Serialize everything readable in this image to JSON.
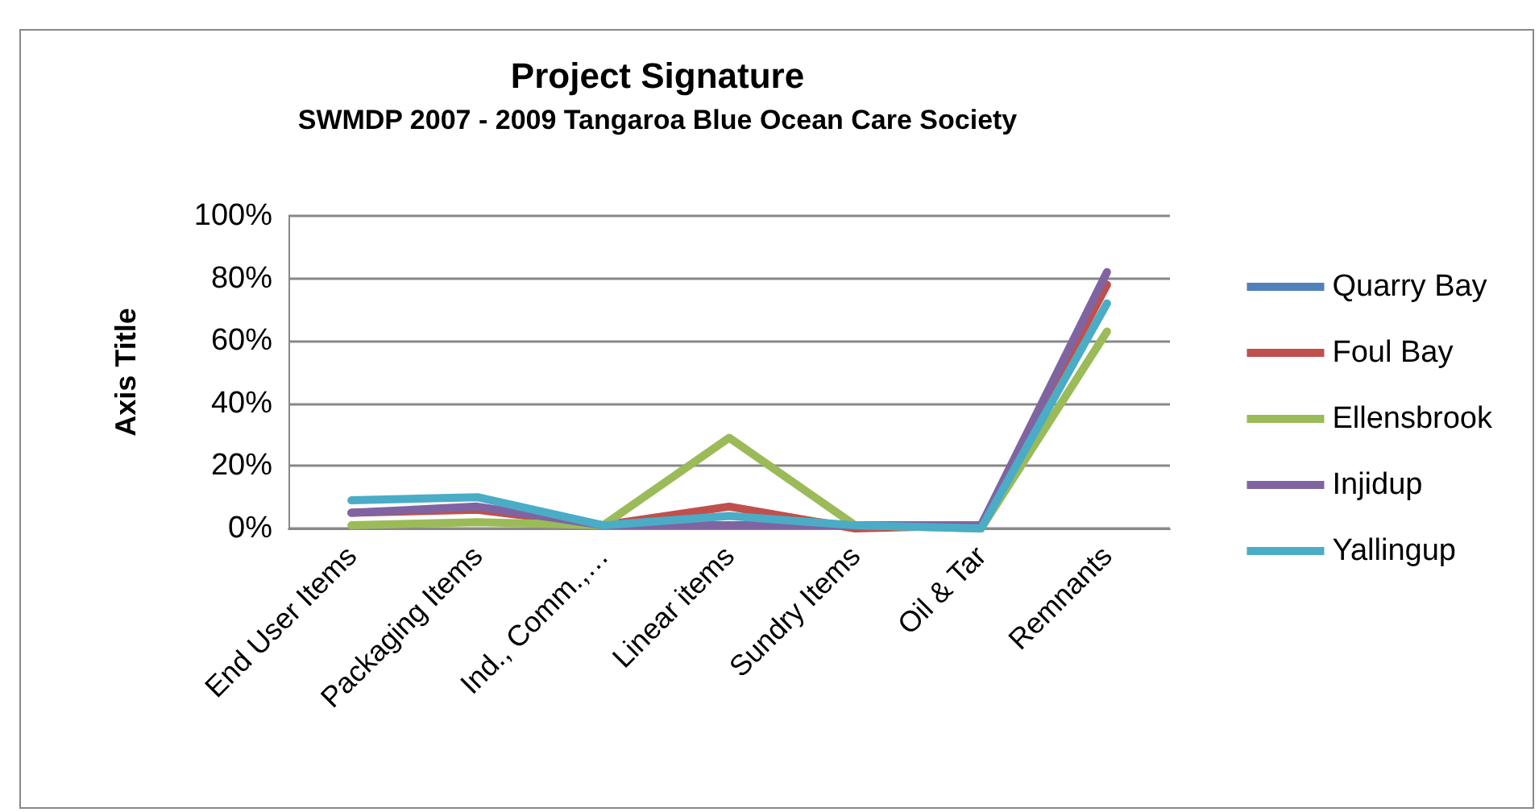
{
  "chart_data": {
    "type": "line",
    "title": "Project Signature",
    "subtitle": "SWMDP 2007 - 2009 Tangaroa Blue Ocean Care Society",
    "ylabel": "Axis Title",
    "categories": [
      "End User Items",
      "Packaging Items",
      "Ind., Comm.,…",
      "Linear items",
      "Sundry Items",
      "Oil & Tar",
      "Remnants"
    ],
    "series": [
      {
        "name": "Quarry Bay",
        "color": "#4f81bd",
        "values": [
          null,
          null,
          null,
          null,
          null,
          null,
          null
        ]
      },
      {
        "name": "Foul Bay",
        "color": "#c0504d",
        "values": [
          5,
          6,
          1,
          7,
          0,
          1,
          78
        ]
      },
      {
        "name": "Ellensbrook",
        "color": "#9bbb59",
        "values": [
          1,
          2,
          1,
          29,
          1,
          0,
          63
        ]
      },
      {
        "name": "Injidup",
        "color": "#8064a2",
        "values": [
          5,
          7,
          1,
          1,
          1,
          1,
          82
        ]
      },
      {
        "name": "Yallingup",
        "color": "#4bacc6",
        "values": [
          9,
          10,
          1,
          4,
          1,
          0,
          72
        ]
      }
    ],
    "ylim": [
      0,
      100
    ],
    "yticks": [
      {
        "value": 0,
        "label": "0%"
      },
      {
        "value": 20,
        "label": "20%"
      },
      {
        "value": 40,
        "label": "40%"
      },
      {
        "value": 60,
        "label": "60%"
      },
      {
        "value": 80,
        "label": "80%"
      },
      {
        "value": 100,
        "label": "100%"
      }
    ],
    "grid": "y",
    "legend": "right",
    "marker": "none",
    "line_style": "solid"
  }
}
